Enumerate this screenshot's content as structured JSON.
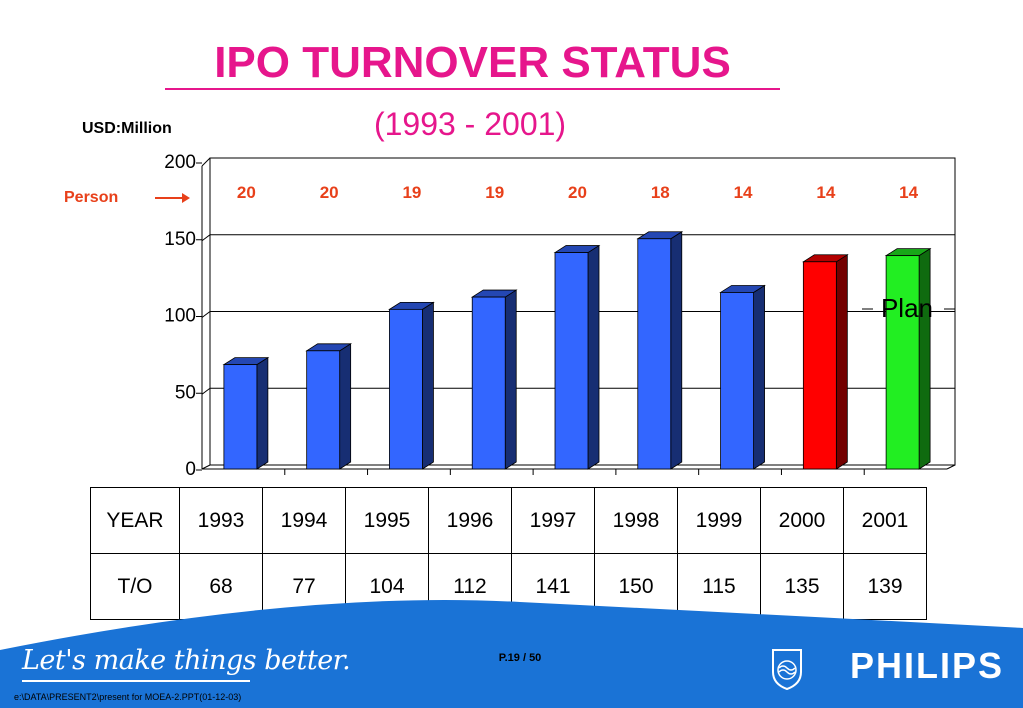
{
  "title": "IPO TURNOVER STATUS",
  "subtitle": "(1993 - 2001)",
  "unit_label": "USD:Million",
  "person_label": "Person",
  "plan_label": "Plan",
  "table": {
    "row1_header": "YEAR",
    "row2_header": "T/O",
    "years": [
      "1993",
      "1994",
      "1995",
      "1996",
      "1997",
      "1998",
      "1999",
      "2000",
      "2001"
    ],
    "values": [
      "68",
      "77",
      "104",
      "112",
      "141",
      "150",
      "115",
      "135",
      "139"
    ]
  },
  "footer": {
    "slogan": "Let's make things better.",
    "page": "P.19 / 50",
    "path": "e:\\DATA\\PRESENT2\\present for MOEA-2.PPT(01-12-03)",
    "brand": "PHILIPS"
  },
  "colors": {
    "title": "#e6168c",
    "bar_actual": "#3366ff",
    "bar_2000": "#ff0000",
    "bar_plan": "#22ee22",
    "person_labels": "#e8401a",
    "footer_blue": "#1a73d6"
  },
  "chart_data": {
    "type": "bar",
    "categories": [
      "1993",
      "1994",
      "1995",
      "1996",
      "1997",
      "1998",
      "1999",
      "2000",
      "2001"
    ],
    "values": [
      68,
      77,
      104,
      112,
      141,
      150,
      115,
      135,
      139
    ],
    "persons": [
      20,
      20,
      19,
      19,
      20,
      18,
      14,
      14,
      14
    ],
    "ylim": [
      0,
      200
    ],
    "yticks": [
      0,
      50,
      100,
      150,
      200
    ],
    "ylabel": "USD:Million",
    "grid": true,
    "three_d": true,
    "bar_colors": [
      "actual",
      "actual",
      "actual",
      "actual",
      "actual",
      "actual",
      "actual",
      "2000",
      "plan"
    ],
    "annotation": "Plan"
  }
}
